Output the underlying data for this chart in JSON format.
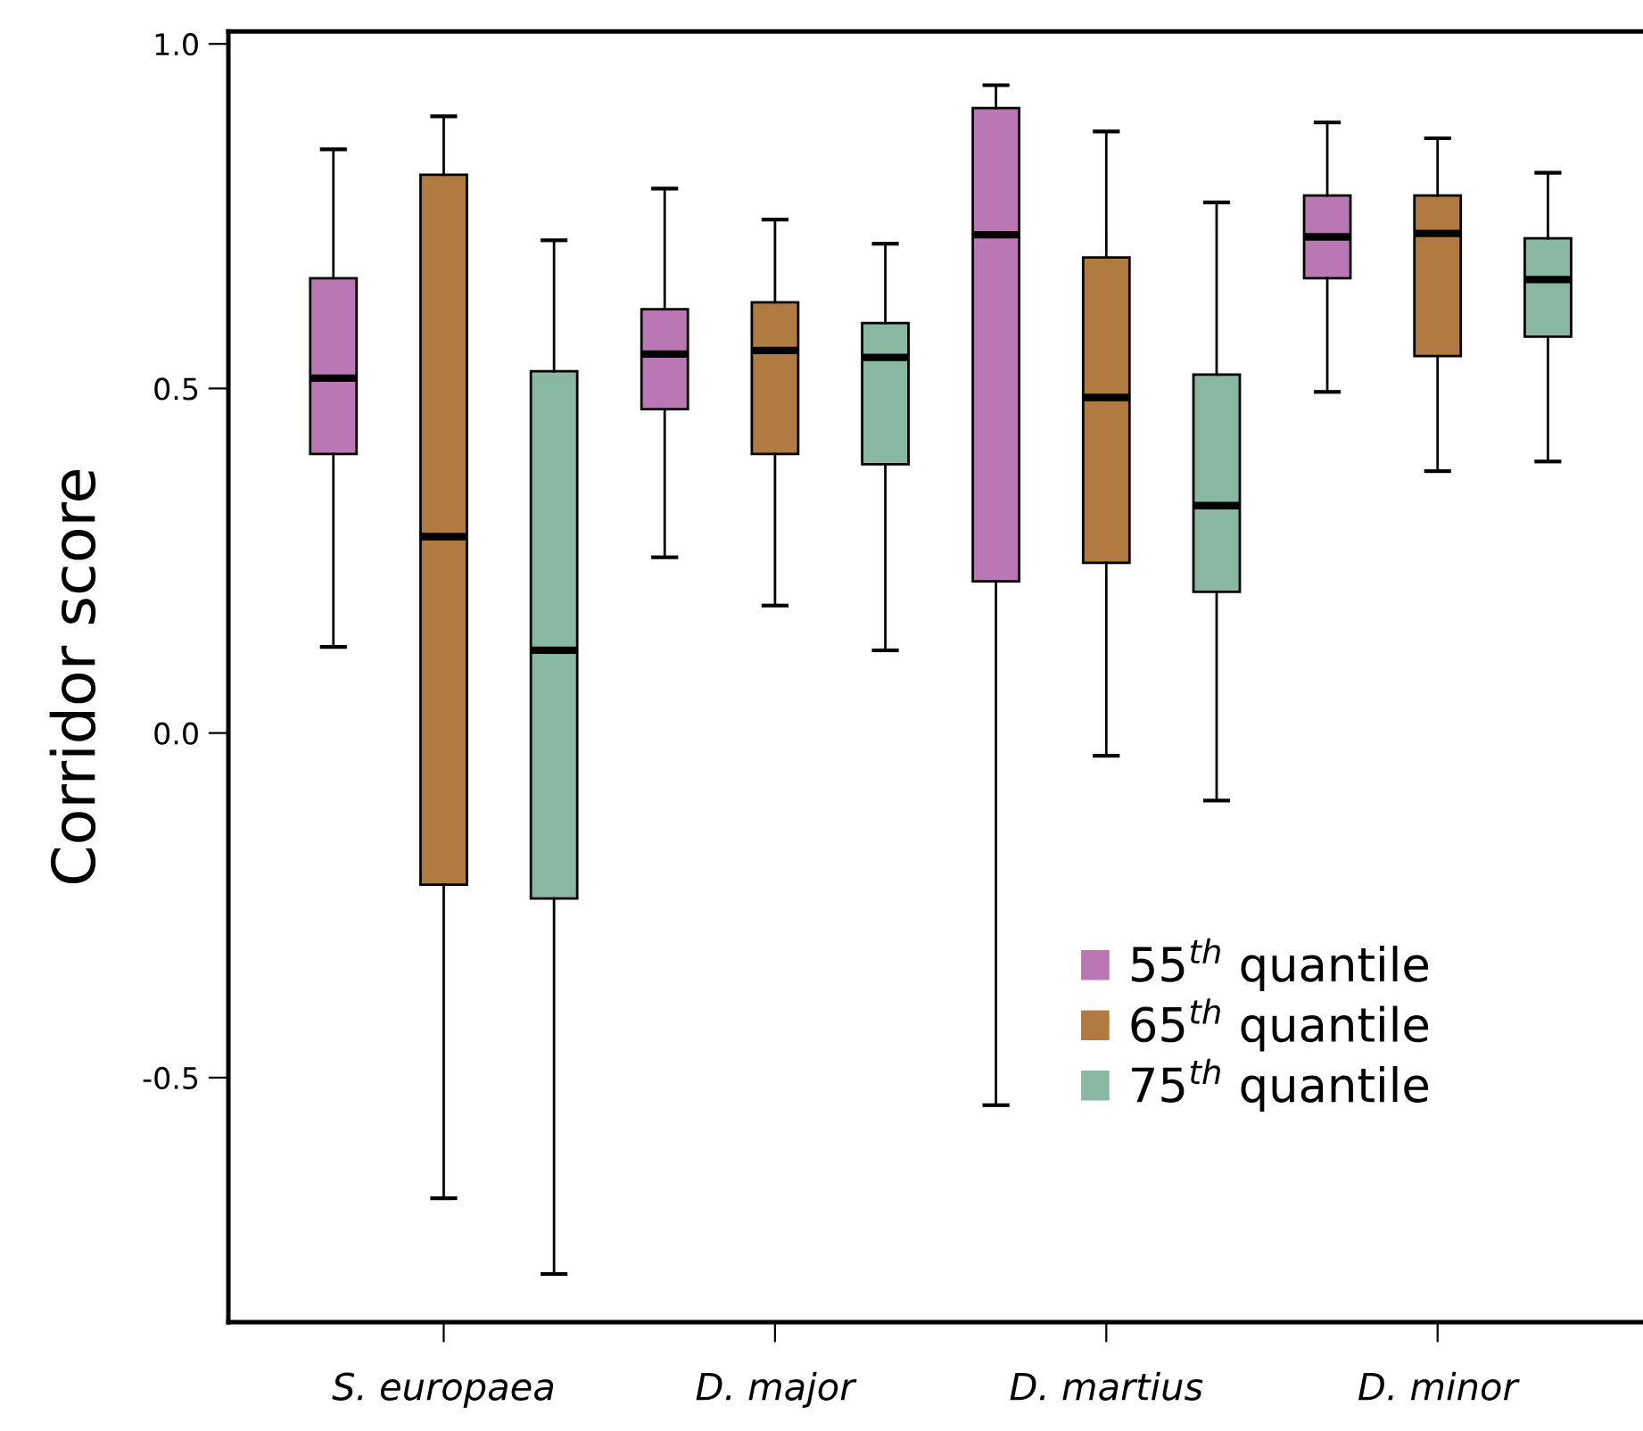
{
  "chart_data": {
    "type": "box",
    "ylabel": "Corridor score",
    "categories": [
      "S. europaea",
      "D. major",
      "D. martius",
      "D. minor"
    ],
    "ylim": [
      -0.855,
      1.018
    ],
    "yticks": [
      -0.5,
      {
        "value": 0,
        "label": "0.0"
      },
      0.5,
      {
        "value": 1,
        "label": "1.0"
      }
    ],
    "grid": false,
    "legend": "bottom right",
    "series": [
      {
        "name": "55$^{th}$ quantile",
        "color": "#b978b3",
        "boxes": [
          {
            "low": 0.125,
            "q1": 0.405,
            "median": 0.515,
            "q3": 0.66,
            "high": 0.847
          },
          {
            "low": 0.255,
            "q1": 0.47,
            "median": 0.55,
            "q3": 0.615,
            "high": 0.79
          },
          {
            "low": -0.54,
            "q1": 0.22,
            "median": 0.723,
            "q3": 0.907,
            "high": 0.94
          },
          {
            "low": 0.495,
            "q1": 0.66,
            "median": 0.72,
            "q3": 0.78,
            "high": 0.886
          }
        ]
      },
      {
        "name": "65$^{th}$ quantile",
        "color": "#b07a40",
        "boxes": [
          {
            "low": -0.675,
            "q1": -0.22,
            "median": 0.285,
            "q3": 0.81,
            "high": 0.895
          },
          {
            "low": 0.185,
            "q1": 0.405,
            "median": 0.555,
            "q3": 0.625,
            "high": 0.745
          },
          {
            "low": -0.033,
            "q1": 0.247,
            "median": 0.487,
            "q3": 0.69,
            "high": 0.873
          },
          {
            "low": 0.38,
            "q1": 0.547,
            "median": 0.725,
            "q3": 0.78,
            "high": 0.863
          }
        ]
      },
      {
        "name": "75$^{th}$ quantile",
        "color": "#88b8a2",
        "boxes": [
          {
            "low": -0.785,
            "q1": -0.24,
            "median": 0.12,
            "q3": 0.525,
            "high": 0.715
          },
          {
            "low": 0.12,
            "q1": 0.39,
            "median": 0.545,
            "q3": 0.595,
            "high": 0.71
          },
          {
            "low": -0.098,
            "q1": 0.205,
            "median": 0.33,
            "q3": 0.52,
            "high": 0.77
          },
          {
            "low": 0.394,
            "q1": 0.575,
            "median": 0.658,
            "q3": 0.718,
            "high": 0.813
          }
        ]
      }
    ]
  }
}
